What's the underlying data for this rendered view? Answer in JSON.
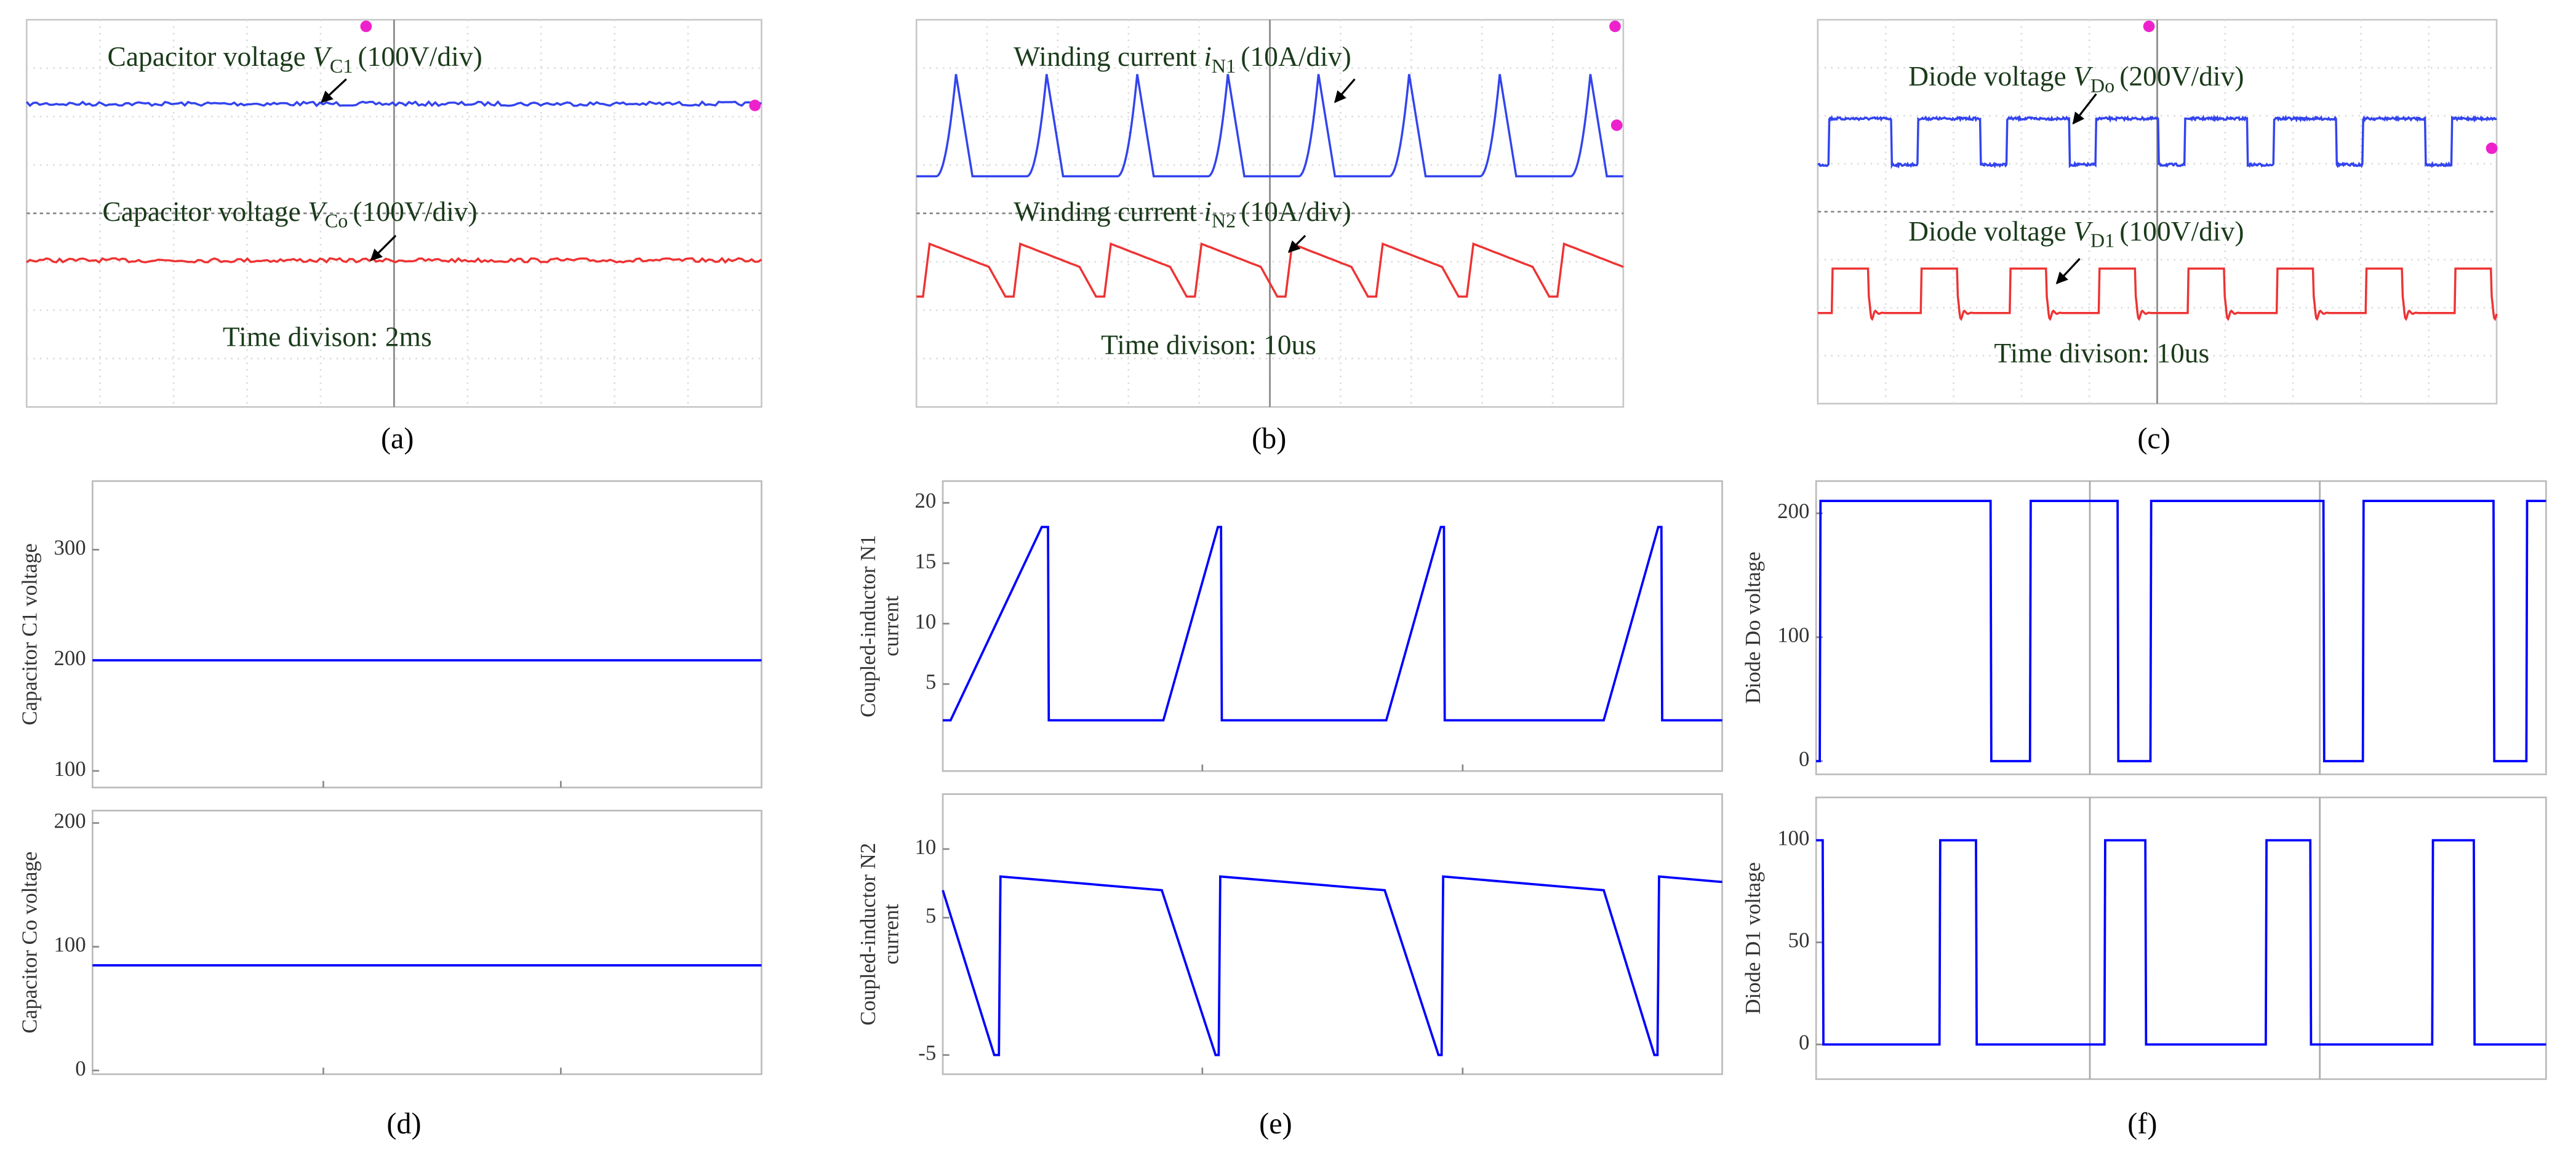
{
  "captions": [
    "(a)",
    "(b)",
    "(c)",
    "(d)",
    "(e)",
    "(f)"
  ],
  "chart_data": [
    {
      "type": "scope",
      "labels": [
        {
          "text": "Capacitor voltage ",
          "symbol": "V",
          "sub": "C1",
          "unit": "(100V/div)"
        },
        {
          "text": "Capacitor voltage ",
          "symbol": "V",
          "sub": "Co",
          "unit": "(100V/div)"
        }
      ],
      "time": "Time divison: 2ms"
    },
    {
      "type": "scope",
      "labels": [
        {
          "text": "Winding current ",
          "symbol": "i",
          "sub": "N1",
          "unit": "(10A/div)"
        },
        {
          "text": "Winding current ",
          "symbol": "i",
          "sub": "N2",
          "unit": "(10A/div)"
        }
      ],
      "time": "Time divison: 10us"
    },
    {
      "type": "scope",
      "labels": [
        {
          "text": "Diode voltage ",
          "symbol": "V",
          "sub": "Do",
          "unit": "(200V/div)"
        },
        {
          "text": "Diode voltage ",
          "symbol": "V",
          "sub": "D1",
          "unit": "(100V/div)"
        }
      ],
      "time": "Time divison: 10us"
    },
    {
      "type": "line",
      "ylabel": [
        "Capacitor C1 voltage"
      ],
      "xlim": [
        0,
        100
      ],
      "xticks": [
        34.5,
        70
      ],
      "ylim": [
        85,
        362
      ],
      "yticks": [
        100,
        200,
        300
      ],
      "grid": false,
      "series": [
        {
          "color": "#0000ff",
          "x": [
            0,
            100
          ],
          "values": [
            200,
            200
          ]
        }
      ]
    },
    {
      "type": "line",
      "ylabel": [
        "Capacitor Co voltage"
      ],
      "xlim": [
        0,
        100
      ],
      "xticks": [
        34.5,
        70
      ],
      "ylim": [
        -3,
        210
      ],
      "yticks": [
        0,
        100,
        200
      ],
      "grid": false,
      "series": [
        {
          "color": "#0000ff",
          "x": [
            0,
            100
          ],
          "values": [
            85,
            85
          ]
        }
      ]
    },
    {
      "type": "line",
      "ylabel": [
        "Coupled-inductor N1",
        "current"
      ],
      "xlim": [
        0,
        100
      ],
      "xticks": [
        33.3,
        66.7
      ],
      "ylim": [
        -2.2,
        21.8
      ],
      "yticks": [
        5,
        10,
        15,
        20
      ],
      "grid": false,
      "series": [
        {
          "color": "#0000ff",
          "x": [
            0,
            1.0,
            12.7,
            13.5,
            13.6,
            28.3,
            35.3,
            35.7,
            35.8,
            56.9,
            63.9,
            64.3,
            64.4,
            84.8,
            91.8,
            92.2,
            92.3,
            100
          ],
          "values": [
            2,
            2,
            18,
            18,
            2,
            2,
            18,
            18,
            2,
            2,
            18,
            18,
            2,
            2,
            18,
            18,
            2,
            2
          ]
        }
      ]
    },
    {
      "type": "line",
      "ylabel": [
        "Coupled-inductor N2",
        "current"
      ],
      "xlim": [
        0,
        100
      ],
      "xticks": [
        33.3,
        66.7
      ],
      "ylim": [
        -6.4,
        14
      ],
      "yticks": [
        -5,
        5,
        10
      ],
      "grid": false,
      "series": [
        {
          "color": "#0000ff",
          "x": [
            0,
            6.6,
            7.2,
            7.4,
            28.1,
            35.0,
            35.4,
            35.6,
            56.7,
            63.6,
            64.0,
            64.2,
            84.8,
            91.3,
            91.7,
            91.9,
            100
          ],
          "values": [
            7,
            -5,
            -5,
            8,
            7,
            -5,
            -5,
            8,
            7,
            -5,
            -5,
            8,
            7,
            -5,
            -5,
            8,
            7.6
          ]
        }
      ]
    },
    {
      "type": "line",
      "ylabel": [
        "Diode Do voltage"
      ],
      "xlim": [
        0,
        100
      ],
      "xticks": [
        37.5,
        69
      ],
      "ylim": [
        -10.7,
        226
      ],
      "yticks": [
        0,
        100,
        200
      ],
      "grid": true,
      "series": [
        {
          "color": "#0000ff",
          "x": [
            0,
            0.5,
            0.6,
            23.9,
            24.0,
            29.3,
            29.4,
            41.3,
            41.4,
            45.8,
            45.9,
            69.5,
            69.6,
            74.9,
            75.0,
            92.8,
            92.9,
            97.3,
            97.4,
            100
          ],
          "values": [
            0,
            0,
            210,
            210,
            0,
            0,
            210,
            210,
            0,
            0,
            210,
            210,
            0,
            0,
            210,
            210,
            0,
            0,
            210,
            210
          ]
        }
      ]
    },
    {
      "type": "line",
      "ylabel": [
        "Diode D1 voltage"
      ],
      "xlim": [
        0,
        100
      ],
      "xticks": [
        37.5,
        69
      ],
      "ylim": [
        -17,
        121
      ],
      "yticks": [
        0,
        50,
        100
      ],
      "grid": true,
      "series": [
        {
          "color": "#0000ff",
          "x": [
            0,
            0.9,
            1.0,
            16.9,
            17.0,
            21.9,
            22.0,
            39.5,
            39.6,
            45.1,
            45.2,
            61.6,
            61.7,
            67.7,
            67.8,
            84.4,
            84.5,
            90.1,
            90.2,
            100
          ],
          "values": [
            100,
            100,
            0,
            0,
            100,
            100,
            0,
            0,
            100,
            100,
            0,
            0,
            100,
            100,
            0,
            0,
            100,
            100,
            0,
            0
          ]
        }
      ]
    }
  ]
}
